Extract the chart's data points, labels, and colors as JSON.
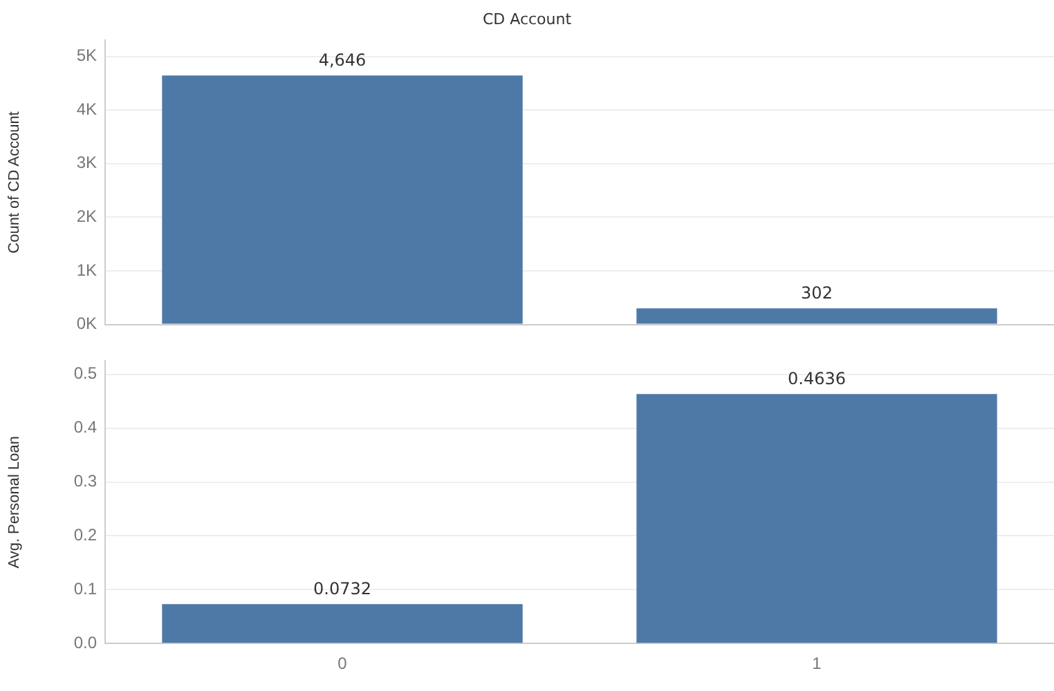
{
  "chart_data": [
    {
      "type": "bar",
      "title": "CD Account",
      "ylabel": "Count of CD Account",
      "categories": [
        "0",
        "1"
      ],
      "series": [
        {
          "color": "#4e79a7",
          "values": [
            4646,
            302
          ],
          "value_labels": [
            "4,646",
            "302"
          ]
        }
      ],
      "ylim": [
        0,
        5300
      ],
      "yticks": [
        {
          "value": 0,
          "label": "0K"
        },
        {
          "value": 1000,
          "label": "1K"
        },
        {
          "value": 2000,
          "label": "2K"
        },
        {
          "value": 3000,
          "label": "3K"
        },
        {
          "value": 4000,
          "label": "4K"
        },
        {
          "value": 5000,
          "label": "5K"
        }
      ],
      "grid": "y",
      "legend": false,
      "tick_labels": "y"
    },
    {
      "type": "bar",
      "ylabel": "Avg. Personal Loan",
      "categories": [
        "0",
        "1"
      ],
      "series": [
        {
          "color": "#4e79a7",
          "values": [
            0.0732,
            0.4636
          ]
        }
      ],
      "ylim": [
        0,
        0.525
      ],
      "yticks": [
        {
          "value": 0,
          "label": "0.0"
        },
        0.1,
        0.2,
        0.3,
        0.4,
        0.5
      ],
      "grid": "y",
      "legend": false,
      "data_labels": true
    }
  ]
}
